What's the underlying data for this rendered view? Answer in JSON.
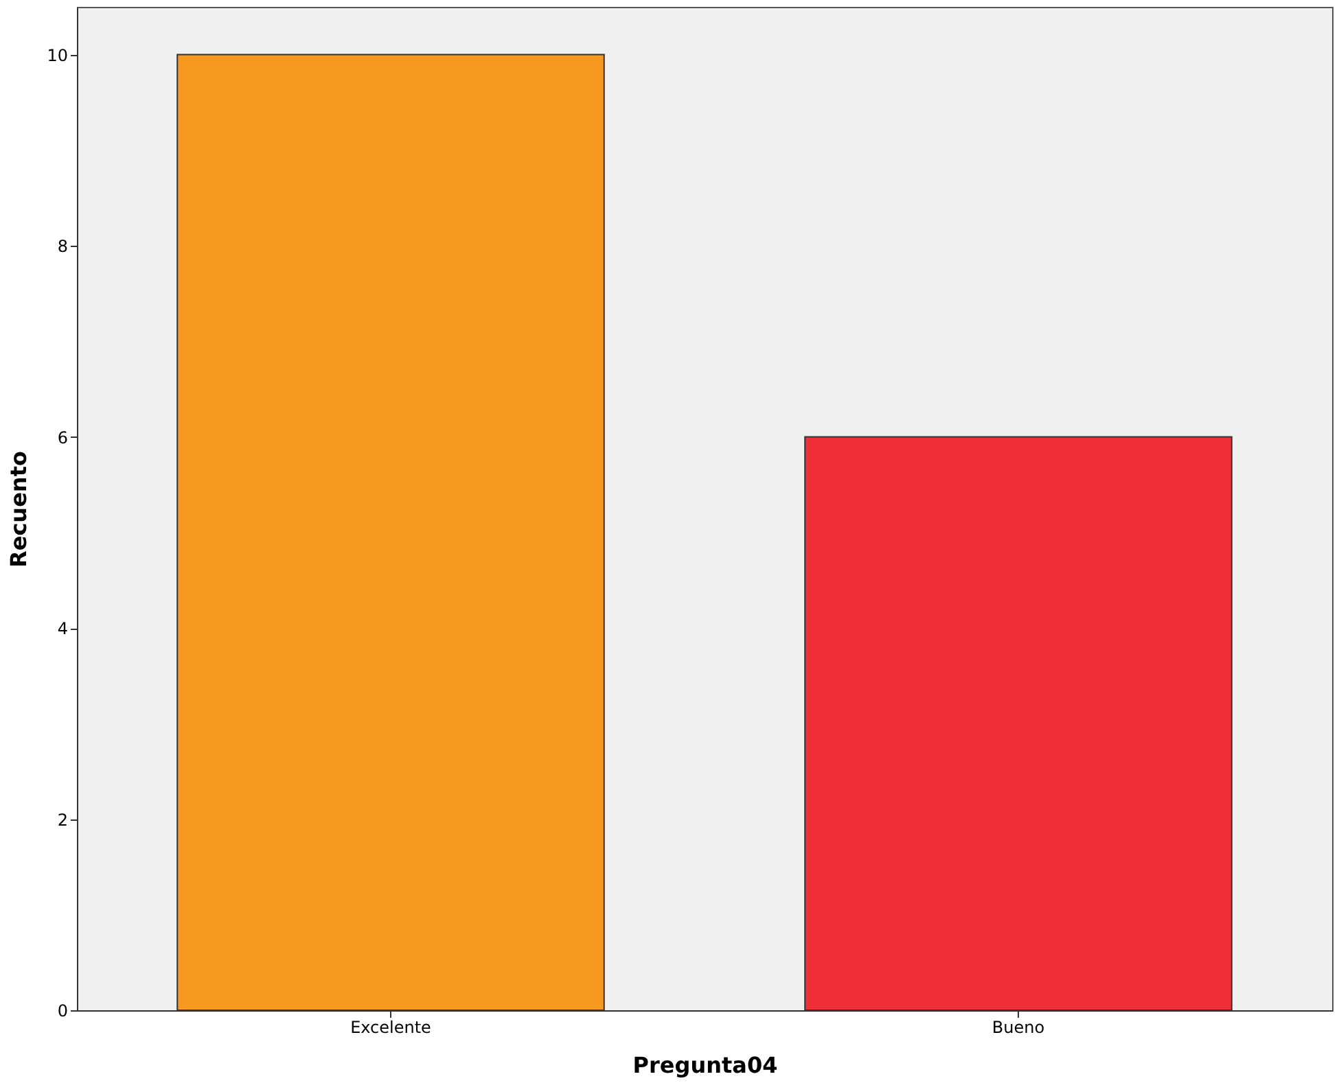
{
  "chart_data": {
    "type": "bar",
    "xlabel": "Pregunta04",
    "ylabel": "Recuento",
    "categories": [
      "Excelente",
      "Bueno"
    ],
    "values": [
      10,
      6
    ],
    "colors": [
      "#f7991f",
      "#ef3038"
    ],
    "ylim": [
      0,
      10.5
    ],
    "yticks": [
      0,
      2,
      4,
      6,
      8,
      10
    ],
    "grid": false
  }
}
